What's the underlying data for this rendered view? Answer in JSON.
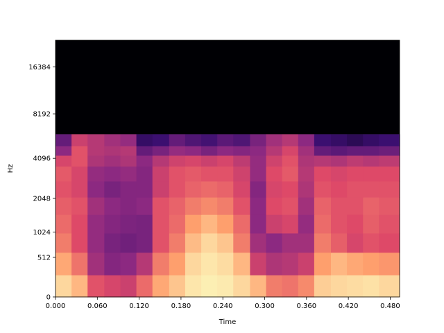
{
  "chart_data": {
    "type": "heatmap",
    "title": "",
    "xlabel": "Time",
    "ylabel": "Hz",
    "xlim": [
      0,
      0.4935
    ],
    "x_ticks": [
      "0.000",
      "0.060",
      "0.120",
      "0.180",
      "0.240",
      "0.300",
      "0.360",
      "0.420",
      "0.480"
    ],
    "y_ticks": [
      "0",
      "512",
      "1024",
      "2048",
      "4096",
      "8192",
      "16384"
    ],
    "y_scale": "mel",
    "ylim": [
      0,
      24000
    ],
    "content_cutoff_hz": 6000,
    "colormap": "magma",
    "colormap_stops": [
      "#000004",
      "#3b0f70",
      "#8c2981",
      "#de4968",
      "#fe9f6d",
      "#fcfdbf"
    ],
    "grid": false,
    "description_of_intensity": "Energy (0–1, magma) estimated per time column across 10 mel-spaced frequency bands from 0 Hz up to ~6000 Hz; above ~6000 Hz the spectrogram is black (no energy).",
    "time_columns": [
      0.0,
      0.023,
      0.046,
      0.07,
      0.093,
      0.116,
      0.139,
      0.163,
      0.186,
      0.209,
      0.232,
      0.255,
      0.279,
      0.302,
      0.325,
      0.348,
      0.371,
      0.395,
      0.418,
      0.441,
      0.464
    ],
    "band_edges_hz": [
      0,
      250,
      600,
      1000,
      1500,
      2100,
      2800,
      3600,
      4300,
      5000,
      6000
    ],
    "intensity": [
      [
        0.92,
        0.85,
        0.62,
        0.58,
        0.55,
        0.68,
        0.82,
        0.88,
        0.95,
        0.97,
        0.96,
        0.92,
        0.85,
        0.72,
        0.7,
        0.75,
        0.9,
        0.92,
        0.93,
        0.94,
        0.92
      ],
      [
        0.82,
        0.7,
        0.45,
        0.38,
        0.4,
        0.5,
        0.72,
        0.8,
        0.92,
        0.95,
        0.93,
        0.85,
        0.55,
        0.48,
        0.5,
        0.55,
        0.8,
        0.85,
        0.82,
        0.8,
        0.78
      ],
      [
        0.72,
        0.6,
        0.42,
        0.35,
        0.33,
        0.35,
        0.62,
        0.72,
        0.86,
        0.92,
        0.88,
        0.72,
        0.45,
        0.4,
        0.45,
        0.45,
        0.72,
        0.65,
        0.58,
        0.62,
        0.6
      ],
      [
        0.68,
        0.6,
        0.42,
        0.38,
        0.36,
        0.35,
        0.62,
        0.68,
        0.8,
        0.85,
        0.8,
        0.68,
        0.4,
        0.55,
        0.58,
        0.42,
        0.68,
        0.62,
        0.6,
        0.65,
        0.62
      ],
      [
        0.65,
        0.62,
        0.45,
        0.4,
        0.38,
        0.4,
        0.62,
        0.66,
        0.72,
        0.75,
        0.72,
        0.62,
        0.4,
        0.6,
        0.62,
        0.45,
        0.66,
        0.62,
        0.62,
        0.66,
        0.64
      ],
      [
        0.62,
        0.58,
        0.4,
        0.35,
        0.38,
        0.38,
        0.55,
        0.62,
        0.66,
        0.68,
        0.66,
        0.58,
        0.38,
        0.58,
        0.6,
        0.48,
        0.62,
        0.6,
        0.62,
        0.62,
        0.62
      ],
      [
        0.64,
        0.58,
        0.42,
        0.4,
        0.42,
        0.38,
        0.55,
        0.62,
        0.64,
        0.62,
        0.62,
        0.56,
        0.42,
        0.6,
        0.64,
        0.5,
        0.6,
        0.58,
        0.6,
        0.6,
        0.6
      ],
      [
        0.58,
        0.62,
        0.48,
        0.45,
        0.48,
        0.4,
        0.5,
        0.56,
        0.58,
        0.55,
        0.58,
        0.52,
        0.42,
        0.56,
        0.62,
        0.48,
        0.5,
        0.48,
        0.52,
        0.5,
        0.52
      ],
      [
        0.4,
        0.62,
        0.5,
        0.48,
        0.5,
        0.3,
        0.35,
        0.42,
        0.4,
        0.35,
        0.4,
        0.38,
        0.4,
        0.5,
        0.58,
        0.45,
        0.3,
        0.28,
        0.3,
        0.3,
        0.32
      ],
      [
        0.3,
        0.55,
        0.5,
        0.45,
        0.42,
        0.18,
        0.2,
        0.3,
        0.25,
        0.22,
        0.28,
        0.25,
        0.35,
        0.45,
        0.5,
        0.4,
        0.2,
        0.18,
        0.15,
        0.18,
        0.2
      ]
    ]
  }
}
